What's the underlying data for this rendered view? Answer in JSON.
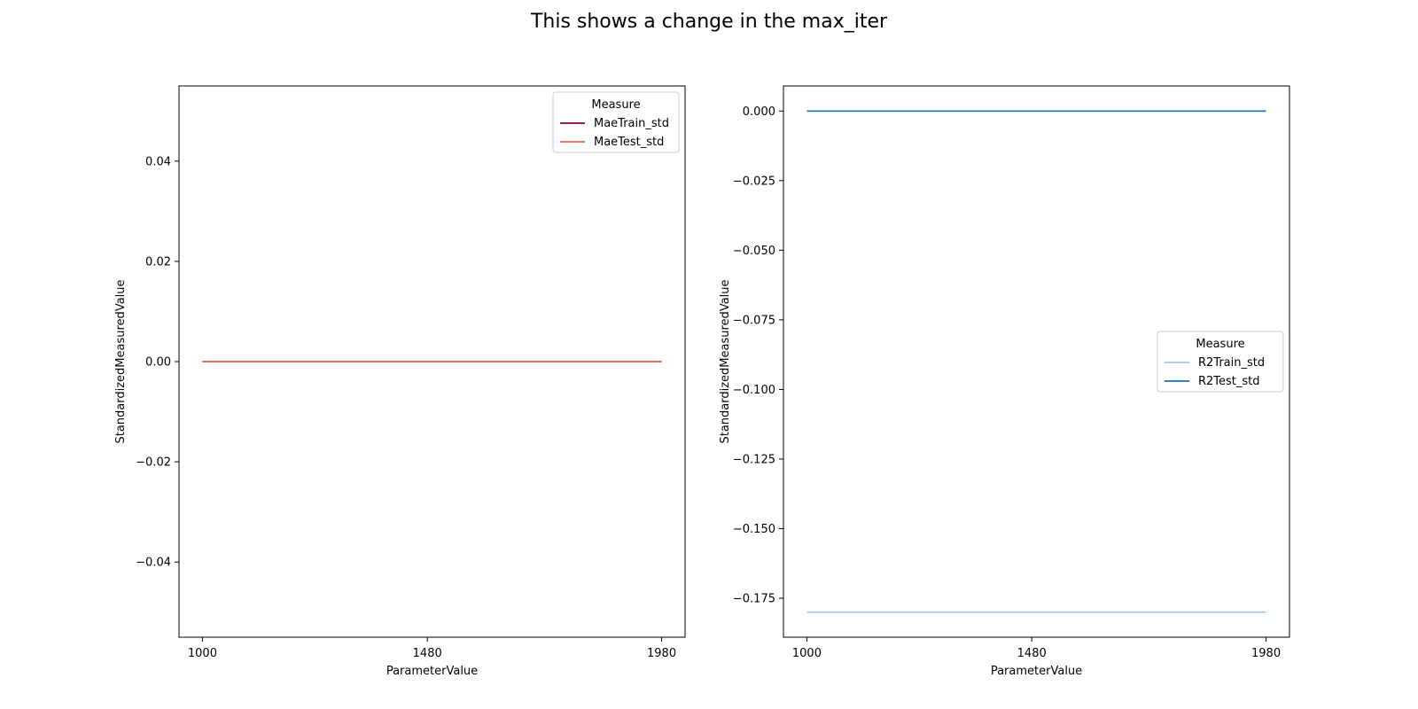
{
  "figure": {
    "title": "This shows a change in the max_iter"
  },
  "chart_data": [
    {
      "type": "line",
      "xlabel": "ParameterValue",
      "ylabel": "StandardizedMeasuredValue",
      "x": [
        1000,
        1980
      ],
      "xticks": [
        1000,
        1480,
        1980
      ],
      "xtick_labels": [
        "1000",
        "1480",
        "1980"
      ],
      "xlim": [
        950,
        2030
      ],
      "ylim": [
        -0.055,
        0.055
      ],
      "yticks": [
        0.04,
        0.02,
        0.0,
        -0.02,
        -0.04
      ],
      "ytick_labels": [
        "0.04",
        "0.02",
        "0.00",
        "−0.02",
        "−0.04"
      ],
      "legend": {
        "title": "Measure",
        "placement": "upper right"
      },
      "series": [
        {
          "name": "MaeTrain_std",
          "color": "#7f0049",
          "values": [
            0.0,
            0.0
          ]
        },
        {
          "name": "MaeTest_std",
          "color": "#f0624a",
          "values": [
            0.0,
            0.0
          ]
        }
      ]
    },
    {
      "type": "line",
      "xlabel": "ParameterValue",
      "ylabel": "StandardizedMeasuredValue",
      "x": [
        1000,
        1980
      ],
      "xticks": [
        1000,
        1480,
        1980
      ],
      "xtick_labels": [
        "1000",
        "1480",
        "1980"
      ],
      "xlim": [
        950,
        2030
      ],
      "ylim": [
        -0.189,
        0.009
      ],
      "yticks": [
        0.0,
        -0.025,
        -0.05,
        -0.075,
        -0.1,
        -0.125,
        -0.15,
        -0.175
      ],
      "ytick_labels": [
        "0.000",
        "−0.025",
        "−0.050",
        "−0.075",
        "−0.100",
        "−0.125",
        "−0.150",
        "−0.175"
      ],
      "legend": {
        "title": "Measure",
        "placement": "center right"
      },
      "series": [
        {
          "name": "R2Train_std",
          "color": "#9ecae1",
          "values": [
            -0.18,
            -0.18
          ]
        },
        {
          "name": "R2Test_std",
          "color": "#1f6eb4",
          "values": [
            0.0,
            0.0
          ]
        }
      ]
    }
  ]
}
